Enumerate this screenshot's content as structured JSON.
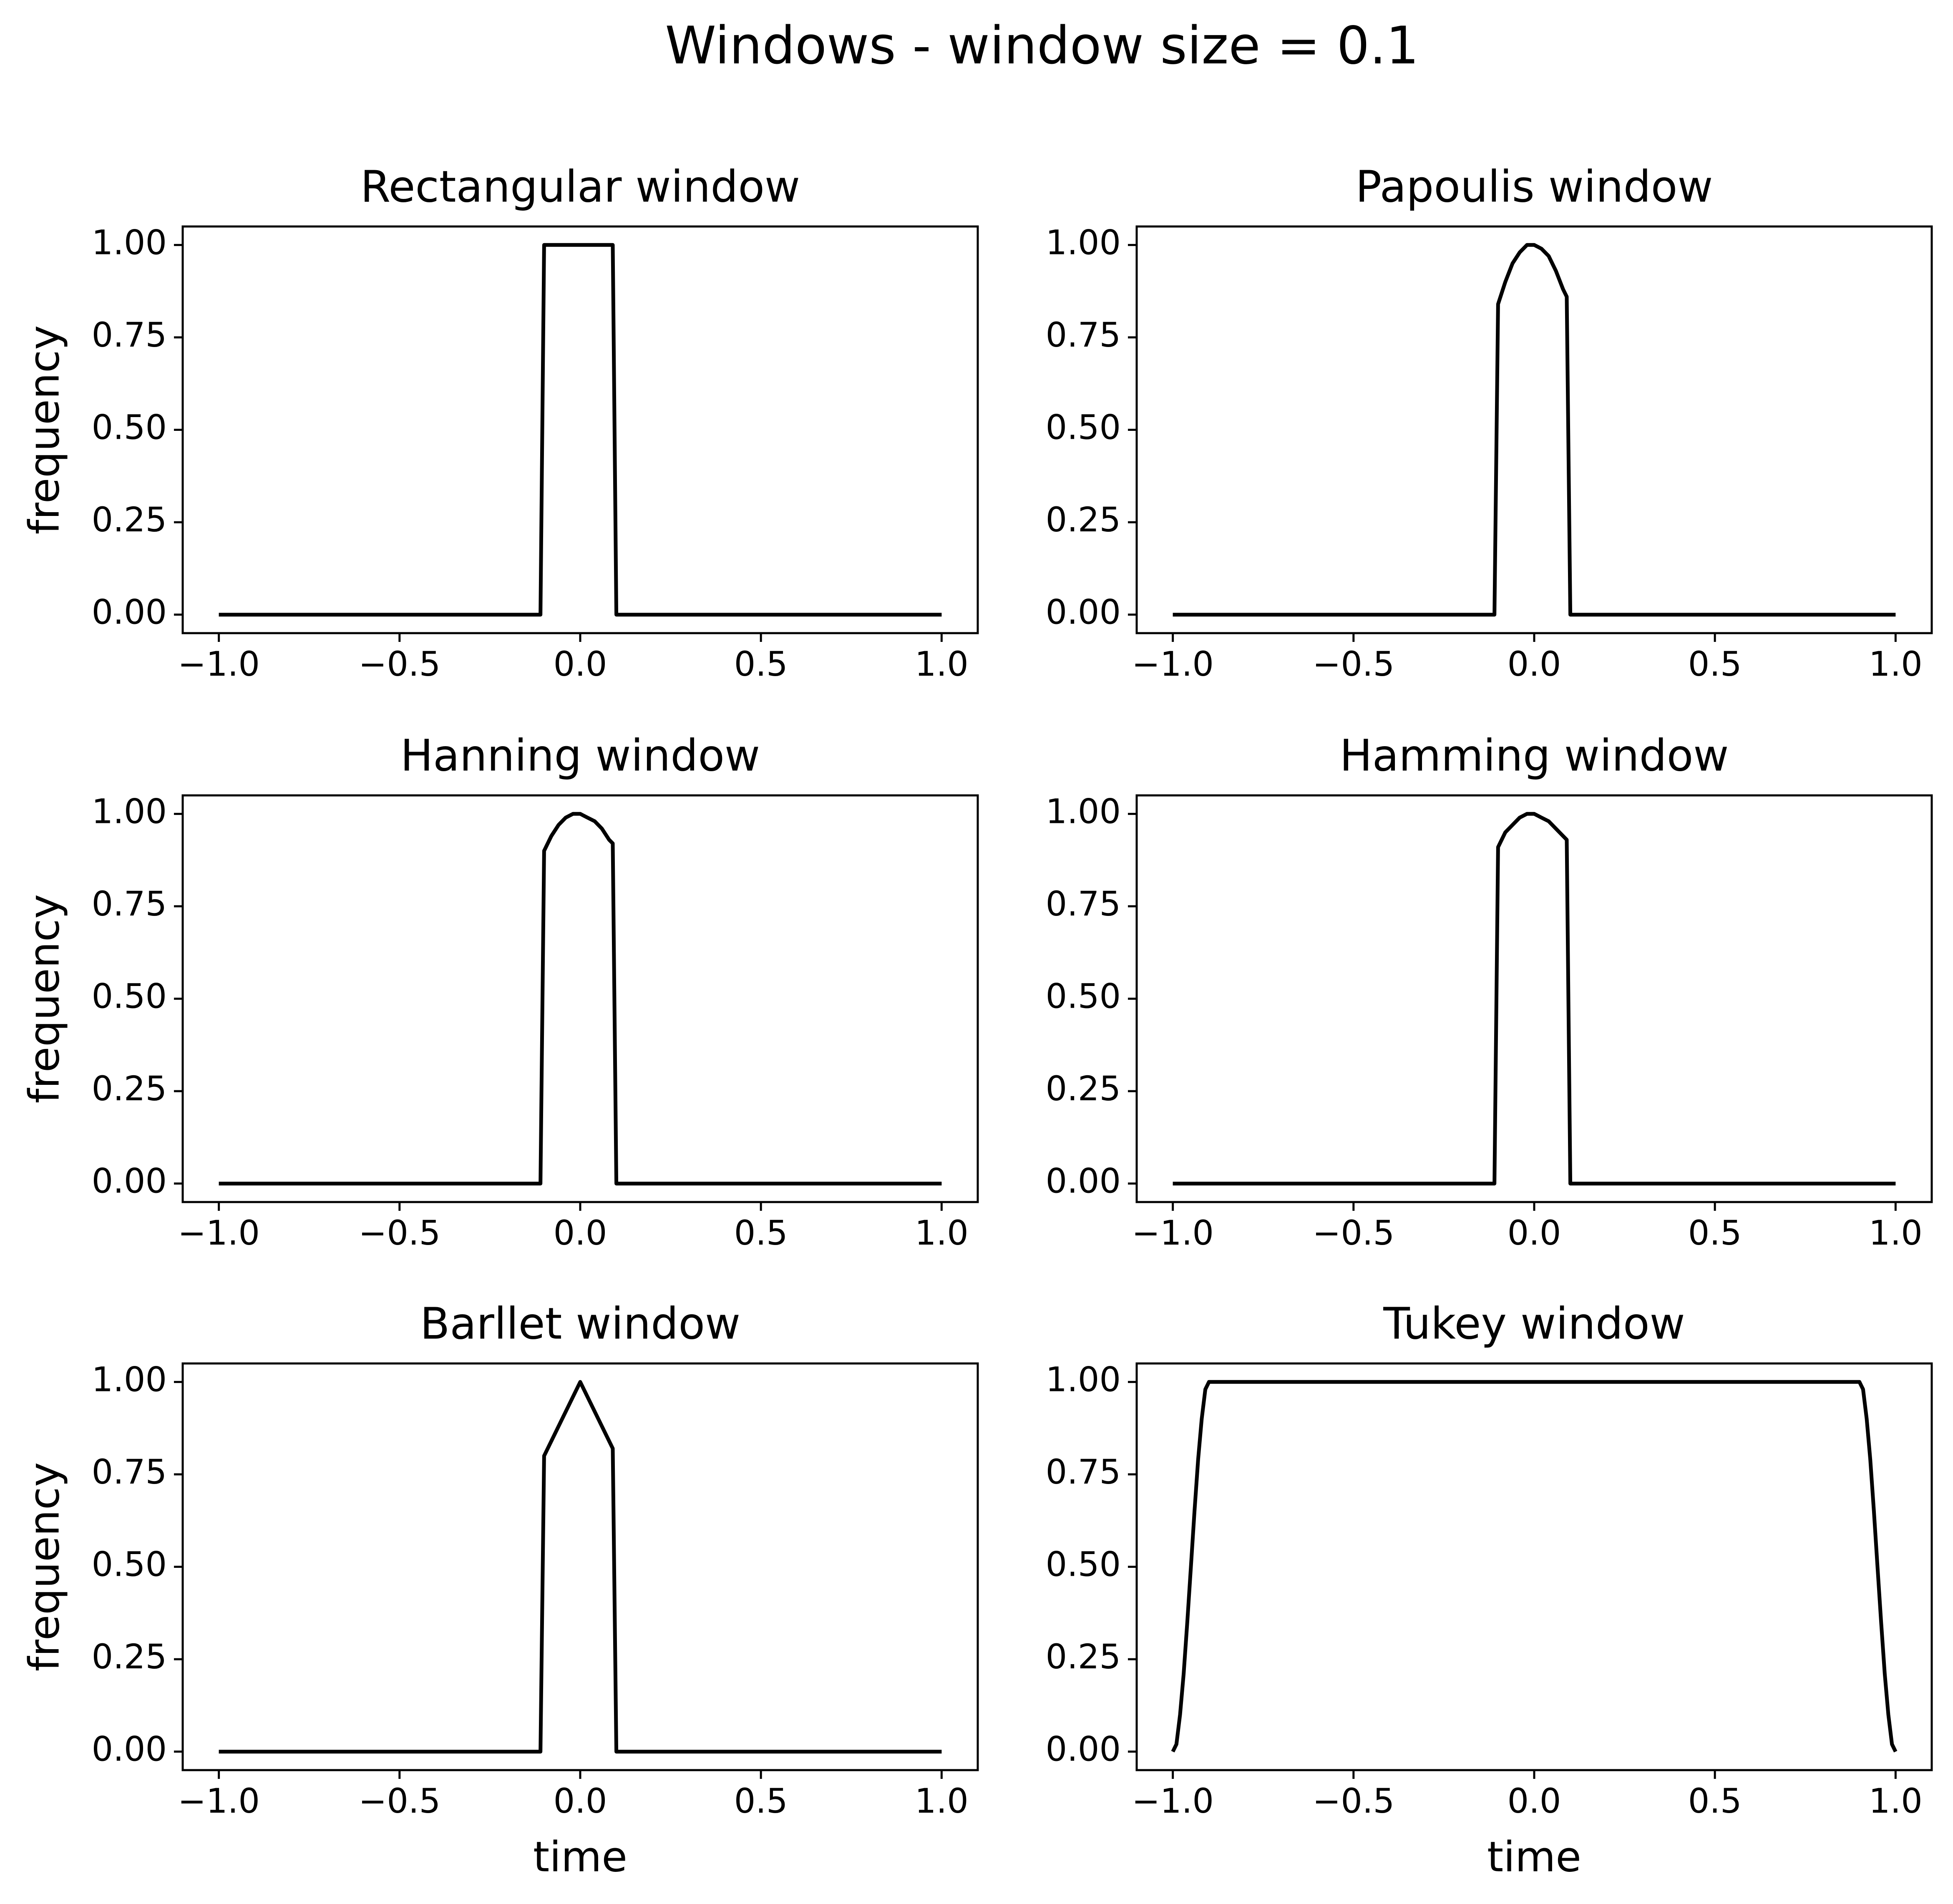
{
  "figure": {
    "suptitle": "Windows - window size = 0.1"
  },
  "chart_data": [
    {
      "type": "line",
      "title": "Rectangular window",
      "xlabel": "",
      "ylabel": "frequency",
      "xlim": [
        -1.1,
        1.1
      ],
      "ylim": [
        -0.05,
        1.05
      ],
      "x_ticks": [
        -1.0,
        -0.5,
        0.0,
        0.5,
        1.0
      ],
      "x_tick_labels": [
        "−1.0",
        "−0.5",
        "0.0",
        "0.5",
        "1.0"
      ],
      "y_ticks": [
        0.0,
        0.25,
        0.5,
        0.75,
        1.0
      ],
      "y_tick_labels": [
        "0.00",
        "0.25",
        "0.50",
        "0.75",
        "1.00"
      ],
      "grid": false,
      "series": [
        {
          "color": "#000000",
          "x": [
            -1.0,
            -0.11,
            -0.1,
            0.0,
            0.09,
            0.1,
            1.0
          ],
          "y": [
            0.0,
            0.0,
            1.0,
            1.0,
            1.0,
            0.0,
            0.0
          ]
        }
      ]
    },
    {
      "type": "line",
      "title": "Papoulis window",
      "xlabel": "",
      "ylabel": "",
      "xlim": [
        -1.1,
        1.1
      ],
      "ylim": [
        -0.05,
        1.05
      ],
      "x_ticks": [
        -1.0,
        -0.5,
        0.0,
        0.5,
        1.0
      ],
      "x_tick_labels": [
        "−1.0",
        "−0.5",
        "0.0",
        "0.5",
        "1.0"
      ],
      "y_ticks": [
        0.0,
        0.25,
        0.5,
        0.75,
        1.0
      ],
      "y_tick_labels": [
        "0.00",
        "0.25",
        "0.50",
        "0.75",
        "1.00"
      ],
      "grid": false,
      "series": [
        {
          "color": "#000000",
          "x": [
            -1.0,
            -0.11,
            -0.1,
            -0.08,
            -0.06,
            -0.04,
            -0.02,
            0.0,
            0.02,
            0.04,
            0.06,
            0.08,
            0.09,
            0.1,
            1.0
          ],
          "y": [
            0.0,
            0.0,
            0.84,
            0.9,
            0.95,
            0.98,
            1.0,
            1.0,
            0.99,
            0.97,
            0.93,
            0.88,
            0.86,
            0.0,
            0.0
          ]
        }
      ]
    },
    {
      "type": "line",
      "title": "Hanning window",
      "xlabel": "",
      "ylabel": "frequency",
      "xlim": [
        -1.1,
        1.1
      ],
      "ylim": [
        -0.05,
        1.05
      ],
      "x_ticks": [
        -1.0,
        -0.5,
        0.0,
        0.5,
        1.0
      ],
      "x_tick_labels": [
        "−1.0",
        "−0.5",
        "0.0",
        "0.5",
        "1.0"
      ],
      "y_ticks": [
        0.0,
        0.25,
        0.5,
        0.75,
        1.0
      ],
      "y_tick_labels": [
        "0.00",
        "0.25",
        "0.50",
        "0.75",
        "1.00"
      ],
      "grid": false,
      "series": [
        {
          "color": "#000000",
          "x": [
            -1.0,
            -0.11,
            -0.1,
            -0.08,
            -0.06,
            -0.04,
            -0.02,
            0.0,
            0.02,
            0.04,
            0.06,
            0.08,
            0.09,
            0.1,
            1.0
          ],
          "y": [
            0.0,
            0.0,
            0.9,
            0.94,
            0.97,
            0.99,
            1.0,
            1.0,
            0.99,
            0.98,
            0.96,
            0.93,
            0.92,
            0.0,
            0.0
          ]
        }
      ]
    },
    {
      "type": "line",
      "title": "Hamming window",
      "xlabel": "",
      "ylabel": "",
      "xlim": [
        -1.1,
        1.1
      ],
      "ylim": [
        -0.05,
        1.05
      ],
      "x_ticks": [
        -1.0,
        -0.5,
        0.0,
        0.5,
        1.0
      ],
      "x_tick_labels": [
        "−1.0",
        "−0.5",
        "0.0",
        "0.5",
        "1.0"
      ],
      "y_ticks": [
        0.0,
        0.25,
        0.5,
        0.75,
        1.0
      ],
      "y_tick_labels": [
        "0.00",
        "0.25",
        "0.50",
        "0.75",
        "1.00"
      ],
      "grid": false,
      "series": [
        {
          "color": "#000000",
          "x": [
            -1.0,
            -0.11,
            -0.1,
            -0.08,
            -0.06,
            -0.04,
            -0.02,
            0.0,
            0.02,
            0.04,
            0.06,
            0.08,
            0.09,
            0.1,
            1.0
          ],
          "y": [
            0.0,
            0.0,
            0.91,
            0.95,
            0.97,
            0.99,
            1.0,
            1.0,
            0.99,
            0.98,
            0.96,
            0.94,
            0.93,
            0.0,
            0.0
          ]
        }
      ]
    },
    {
      "type": "line",
      "title": "Barllet window",
      "xlabel": "time",
      "ylabel": "frequency",
      "xlim": [
        -1.1,
        1.1
      ],
      "ylim": [
        -0.05,
        1.05
      ],
      "x_ticks": [
        -1.0,
        -0.5,
        0.0,
        0.5,
        1.0
      ],
      "x_tick_labels": [
        "−1.0",
        "−0.5",
        "0.0",
        "0.5",
        "1.0"
      ],
      "y_ticks": [
        0.0,
        0.25,
        0.5,
        0.75,
        1.0
      ],
      "y_tick_labels": [
        "0.00",
        "0.25",
        "0.50",
        "0.75",
        "1.00"
      ],
      "grid": false,
      "series": [
        {
          "color": "#000000",
          "x": [
            -1.0,
            -0.11,
            -0.1,
            0.0,
            0.09,
            0.1,
            1.0
          ],
          "y": [
            0.0,
            0.0,
            0.8,
            1.0,
            0.82,
            0.0,
            0.0
          ]
        }
      ]
    },
    {
      "type": "line",
      "title": "Tukey window",
      "xlabel": "time",
      "ylabel": "",
      "xlim": [
        -1.1,
        1.1
      ],
      "ylim": [
        -0.05,
        1.05
      ],
      "x_ticks": [
        -1.0,
        -0.5,
        0.0,
        0.5,
        1.0
      ],
      "x_tick_labels": [
        "−1.0",
        "−0.5",
        "0.0",
        "0.5",
        "1.0"
      ],
      "y_ticks": [
        0.0,
        0.25,
        0.5,
        0.75,
        1.0
      ],
      "y_tick_labels": [
        "0.00",
        "0.25",
        "0.50",
        "0.75",
        "1.00"
      ],
      "grid": false,
      "series": [
        {
          "color": "#000000",
          "x": [
            -1.0,
            -0.99,
            -0.98,
            -0.97,
            -0.96,
            -0.95,
            -0.94,
            -0.93,
            -0.92,
            -0.91,
            -0.9,
            0.0,
            0.9,
            0.91,
            0.92,
            0.93,
            0.94,
            0.95,
            0.96,
            0.97,
            0.98,
            0.99,
            1.0
          ],
          "y": [
            0.0,
            0.02,
            0.1,
            0.21,
            0.35,
            0.5,
            0.65,
            0.79,
            0.9,
            0.98,
            1.0,
            1.0,
            1.0,
            0.98,
            0.9,
            0.79,
            0.65,
            0.5,
            0.35,
            0.21,
            0.1,
            0.02,
            0.0
          ]
        }
      ]
    }
  ]
}
